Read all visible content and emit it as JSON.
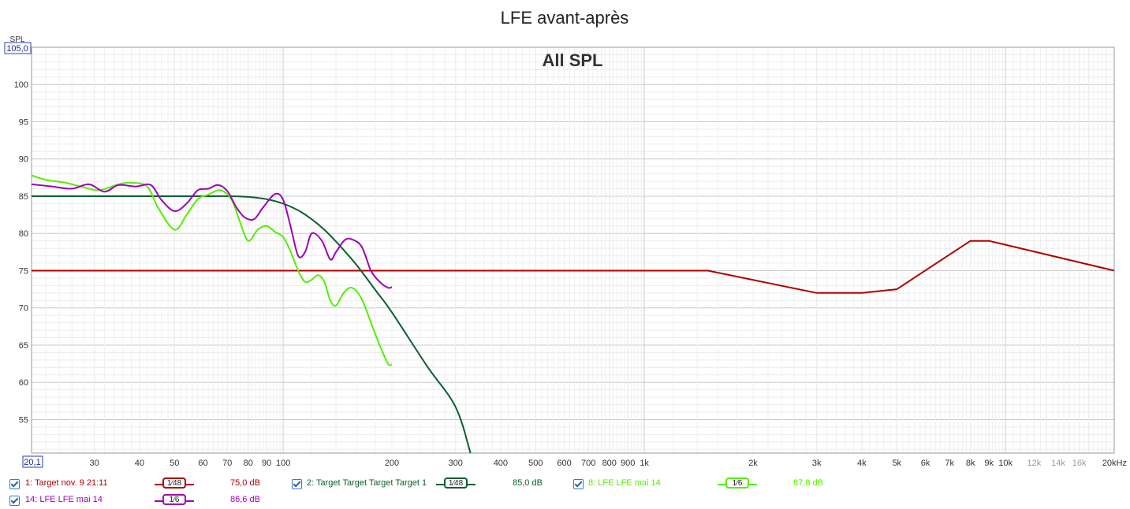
{
  "chart_data": {
    "type": "line",
    "title": "LFE avant-après",
    "subtitle": "All SPL",
    "ylabel": "SPL",
    "x_scale": "log",
    "xlim": [
      20.1,
      20000
    ],
    "ylim": [
      50.5,
      105.0
    ],
    "y_top_label": "105,0",
    "x_left_label": "20,1",
    "y_ticks": [
      55,
      60,
      65,
      70,
      75,
      80,
      85,
      90,
      95,
      100
    ],
    "y_tick_labels": [
      "55",
      "60",
      "65",
      "70",
      "75",
      "80",
      "85",
      "90",
      "95",
      "100"
    ],
    "x_ticks": [
      {
        "v": 30,
        "label": "30"
      },
      {
        "v": 40,
        "label": "40"
      },
      {
        "v": 50,
        "label": "50"
      },
      {
        "v": 60,
        "label": "60"
      },
      {
        "v": 70,
        "label": "70"
      },
      {
        "v": 80,
        "label": "80"
      },
      {
        "v": 90,
        "label": "90"
      },
      {
        "v": 100,
        "label": "100"
      },
      {
        "v": 200,
        "label": "200"
      },
      {
        "v": 300,
        "label": "300"
      },
      {
        "v": 400,
        "label": "400"
      },
      {
        "v": 500,
        "label": "500"
      },
      {
        "v": 600,
        "label": "600"
      },
      {
        "v": 700,
        "label": "700"
      },
      {
        "v": 800,
        "label": "800"
      },
      {
        "v": 900,
        "label": "900"
      },
      {
        "v": 1000,
        "label": "1k"
      },
      {
        "v": 2000,
        "label": "2k"
      },
      {
        "v": 3000,
        "label": "3k"
      },
      {
        "v": 4000,
        "label": "4k"
      },
      {
        "v": 5000,
        "label": "5k"
      },
      {
        "v": 6000,
        "label": "6k"
      },
      {
        "v": 7000,
        "label": "7k"
      },
      {
        "v": 8000,
        "label": "8k"
      },
      {
        "v": 9000,
        "label": "9k"
      },
      {
        "v": 10000,
        "label": "10k"
      },
      {
        "v": 12000,
        "label": "12k"
      },
      {
        "v": 14000,
        "label": "14k"
      },
      {
        "v": 16000,
        "label": "16k"
      },
      {
        "v": 20000,
        "label": "20kHz"
      }
    ],
    "grid": true,
    "series": [
      {
        "name": "1: Target nov. 9 21:11",
        "color": "#b00000",
        "smoothing": "1/48",
        "level": "75,0 dB",
        "points": [
          [
            20.1,
            75
          ],
          [
            1500,
            75
          ],
          [
            3000,
            72
          ],
          [
            4000,
            72
          ],
          [
            5000,
            72.5
          ],
          [
            8000,
            79
          ],
          [
            9000,
            79
          ],
          [
            20000,
            75
          ]
        ]
      },
      {
        "name": "2: Target Target Target Target 1",
        "color": "#0a6030",
        "smoothing": "1/48",
        "level": "85,0 dB",
        "points": [
          [
            20.1,
            85
          ],
          [
            60,
            85
          ],
          [
            70,
            85
          ],
          [
            80,
            84.9
          ],
          [
            90,
            84.6
          ],
          [
            100,
            84.0
          ],
          [
            110,
            83.1
          ],
          [
            120,
            81.9
          ],
          [
            130,
            80.5
          ],
          [
            140,
            78.9
          ],
          [
            150,
            77.3
          ],
          [
            160,
            75.7
          ],
          [
            180,
            72.4
          ],
          [
            200,
            69.4
          ],
          [
            250,
            62.2
          ],
          [
            300,
            56.7
          ],
          [
            330,
            50.5
          ]
        ]
      },
      {
        "name": "8: LFE LFE mai 14",
        "color": "#55ee00",
        "smoothing": "1/6",
        "level": "87,8 dB",
        "points": [
          [
            20.1,
            87.8
          ],
          [
            22,
            87.2
          ],
          [
            25,
            86.8
          ],
          [
            28,
            86.2
          ],
          [
            31,
            85.8
          ],
          [
            35,
            86.6
          ],
          [
            38,
            86.8
          ],
          [
            42,
            86.3
          ],
          [
            45,
            83.5
          ],
          [
            50,
            80.5
          ],
          [
            54,
            82.5
          ],
          [
            58,
            84.6
          ],
          [
            62,
            85.2
          ],
          [
            67,
            85.8
          ],
          [
            72,
            84.5
          ],
          [
            76,
            81.5
          ],
          [
            80,
            79
          ],
          [
            85,
            80.5
          ],
          [
            90,
            81
          ],
          [
            95,
            80.2
          ],
          [
            100,
            79.5
          ],
          [
            105,
            77.5
          ],
          [
            110,
            75
          ],
          [
            115,
            73.5
          ],
          [
            120,
            73.8
          ],
          [
            125,
            74.4
          ],
          [
            130,
            73.5
          ],
          [
            135,
            71
          ],
          [
            140,
            70.3
          ],
          [
            147,
            72
          ],
          [
            155,
            72.7
          ],
          [
            165,
            71.2
          ],
          [
            175,
            68
          ],
          [
            185,
            65
          ],
          [
            195,
            62.5
          ],
          [
            200,
            62.4
          ]
        ]
      },
      {
        "name": "14: LFE LFE mai 14",
        "color": "#a000b8",
        "smoothing": "1/6",
        "level": "86,6 dB",
        "points": [
          [
            20.1,
            86.6
          ],
          [
            23,
            86.3
          ],
          [
            26,
            86
          ],
          [
            29,
            86.6
          ],
          [
            32,
            85.6
          ],
          [
            35,
            86.5
          ],
          [
            39,
            86.3
          ],
          [
            43,
            86.5
          ],
          [
            46,
            84.5
          ],
          [
            50,
            83
          ],
          [
            54,
            84
          ],
          [
            58,
            85.8
          ],
          [
            62,
            86
          ],
          [
            66,
            86.5
          ],
          [
            70,
            85.7
          ],
          [
            74,
            83.6
          ],
          [
            78,
            82.2
          ],
          [
            83,
            81.9
          ],
          [
            88,
            83.5
          ],
          [
            95,
            85.3
          ],
          [
            100,
            84.5
          ],
          [
            105,
            80.8
          ],
          [
            110,
            77
          ],
          [
            115,
            77.5
          ],
          [
            120,
            80
          ],
          [
            128,
            79
          ],
          [
            135,
            76.5
          ],
          [
            140,
            77.5
          ],
          [
            148,
            79.1
          ],
          [
            155,
            79.2
          ],
          [
            165,
            78.2
          ],
          [
            175,
            75
          ],
          [
            185,
            73.5
          ],
          [
            195,
            72.7
          ],
          [
            200,
            72.8
          ]
        ]
      }
    ]
  },
  "legend": [
    {
      "name": "1: Target nov. 9 21:11",
      "smoothing_num": "1",
      "smoothing_den": "48",
      "level": "75,0 dB",
      "color": "#b00000"
    },
    {
      "name": "2: Target Target Target Target 1",
      "smoothing_num": "1",
      "smoothing_den": "48",
      "level": "85,0 dB",
      "color": "#0a6030"
    },
    {
      "name": "8: LFE LFE mai 14",
      "smoothing_num": "1",
      "smoothing_den": "6",
      "level": "87,8 dB",
      "color": "#55ee00"
    },
    {
      "name": "14: LFE LFE mai 14",
      "smoothing_num": "1",
      "smoothing_den": "6",
      "level": "86,6 dB",
      "color": "#a000b8"
    }
  ]
}
